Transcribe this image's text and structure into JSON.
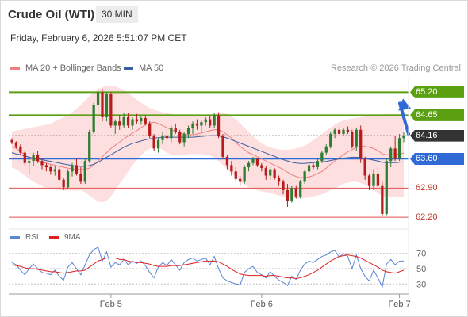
{
  "header": {
    "title": "Crude Oil (WTI)",
    "timeframe": "30 MIN",
    "datetime": "Friday, February 6, 2026 5:51:07 PM CET",
    "credit": "Research © 2026 Trading Central"
  },
  "legend": {
    "ma20": "MA 20 + Bollinger Bands",
    "ma50": "MA 50",
    "ma20_color": "#f08080",
    "ma50_color": "#3a5fa0"
  },
  "rsi_legend": {
    "rsi": "RSI",
    "ma9": "9MA",
    "rsi_color": "#5b84d6",
    "ma9_color": "#e02020"
  },
  "colors": {
    "up": "#2e7d32",
    "down": "#b71c1c",
    "band": "#fddcdc",
    "resistance": "#5aa010",
    "support": "#e05050",
    "current": "#333333",
    "pivot": "#2f6ad6",
    "arrow": "#2f6ad6"
  },
  "chart_data": [
    {
      "type": "candlestick",
      "y_scale": [
        62.05,
        65.55
      ],
      "x_labels": [
        "Feb 5",
        "Feb 6",
        "Feb 7"
      ],
      "ohlc": [
        [
          64.05,
          64.1,
          63.95,
          64.0
        ],
        [
          64.0,
          64.02,
          63.85,
          63.9
        ],
        [
          63.9,
          63.95,
          63.7,
          63.75
        ],
        [
          63.75,
          63.8,
          63.45,
          63.5
        ],
        [
          63.5,
          63.62,
          63.25,
          63.55
        ],
        [
          63.55,
          63.75,
          63.42,
          63.7
        ],
        [
          63.7,
          63.8,
          63.5,
          63.55
        ],
        [
          63.55,
          63.6,
          63.35,
          63.45
        ],
        [
          63.45,
          63.5,
          63.3,
          63.4
        ],
        [
          63.4,
          63.45,
          63.22,
          63.3
        ],
        [
          63.3,
          63.42,
          63.2,
          63.35
        ],
        [
          63.35,
          63.4,
          63.05,
          63.1
        ],
        [
          63.1,
          63.15,
          62.85,
          62.92
        ],
        [
          62.92,
          63.35,
          62.88,
          63.3
        ],
        [
          63.3,
          63.5,
          63.18,
          63.45
        ],
        [
          63.45,
          63.6,
          63.2,
          63.25
        ],
        [
          63.25,
          63.4,
          63.0,
          63.05
        ],
        [
          63.05,
          63.6,
          63.0,
          63.55
        ],
        [
          63.55,
          64.3,
          63.5,
          64.25
        ],
        [
          64.25,
          64.95,
          64.2,
          64.9
        ],
        [
          64.9,
          65.3,
          64.6,
          65.2
        ],
        [
          65.2,
          65.28,
          64.5,
          64.6
        ],
        [
          64.6,
          65.2,
          64.5,
          65.15
        ],
        [
          65.15,
          65.2,
          64.35,
          64.4
        ],
        [
          64.4,
          64.55,
          64.2,
          64.5
        ],
        [
          64.5,
          64.65,
          64.3,
          64.4
        ],
        [
          64.4,
          64.7,
          64.35,
          64.6
        ],
        [
          64.6,
          64.7,
          64.35,
          64.4
        ],
        [
          64.4,
          64.6,
          64.3,
          64.55
        ],
        [
          64.55,
          64.68,
          64.45,
          64.5
        ],
        [
          64.5,
          64.62,
          64.42,
          64.58
        ],
        [
          64.58,
          64.65,
          64.4,
          64.45
        ],
        [
          64.45,
          64.5,
          64.1,
          64.15
        ],
        [
          64.15,
          64.2,
          63.8,
          63.85
        ],
        [
          63.85,
          64.1,
          63.75,
          64.05
        ],
        [
          64.05,
          64.25,
          63.95,
          64.15
        ],
        [
          64.15,
          64.3,
          64.05,
          64.1
        ],
        [
          64.1,
          64.4,
          64.0,
          64.35
        ],
        [
          64.35,
          64.45,
          64.2,
          64.25
        ],
        [
          64.25,
          64.3,
          63.95,
          64.0
        ],
        [
          64.0,
          64.25,
          63.9,
          64.2
        ],
        [
          64.2,
          64.4,
          64.1,
          64.35
        ],
        [
          64.35,
          64.5,
          64.2,
          64.45
        ],
        [
          64.45,
          64.55,
          64.3,
          64.4
        ],
        [
          64.4,
          64.52,
          64.25,
          64.48
        ],
        [
          64.48,
          64.6,
          64.4,
          64.55
        ],
        [
          64.55,
          64.62,
          64.35,
          64.4
        ],
        [
          64.4,
          64.7,
          64.35,
          64.65
        ],
        [
          64.65,
          64.72,
          64.1,
          64.15
        ],
        [
          64.15,
          64.2,
          63.6,
          63.65
        ],
        [
          63.65,
          63.7,
          63.35,
          63.45
        ],
        [
          63.45,
          63.55,
          63.2,
          63.3
        ],
        [
          63.3,
          63.4,
          63.05,
          63.12
        ],
        [
          63.12,
          63.2,
          62.95,
          63.05
        ],
        [
          63.05,
          63.45,
          63.0,
          63.4
        ],
        [
          63.4,
          63.55,
          63.3,
          63.5
        ],
        [
          63.5,
          63.65,
          63.45,
          63.6
        ],
        [
          63.6,
          63.62,
          63.4,
          63.45
        ],
        [
          63.45,
          63.5,
          63.3,
          63.38
        ],
        [
          63.38,
          63.42,
          63.1,
          63.2
        ],
        [
          63.2,
          63.4,
          63.1,
          63.35
        ],
        [
          63.35,
          63.38,
          63.1,
          63.15
        ],
        [
          63.15,
          63.2,
          62.95,
          63.05
        ],
        [
          63.05,
          63.1,
          62.75,
          62.85
        ],
        [
          62.85,
          63.0,
          62.45,
          62.6
        ],
        [
          62.6,
          62.95,
          62.55,
          62.9
        ],
        [
          62.9,
          62.95,
          62.65,
          62.7
        ],
        [
          62.7,
          63.1,
          62.65,
          63.05
        ],
        [
          63.05,
          63.35,
          63.0,
          63.3
        ],
        [
          63.3,
          63.5,
          63.25,
          63.45
        ],
        [
          63.45,
          63.5,
          63.35,
          63.4
        ],
        [
          63.4,
          63.6,
          63.35,
          63.55
        ],
        [
          63.55,
          63.78,
          63.5,
          63.75
        ],
        [
          63.75,
          63.95,
          63.7,
          63.9
        ],
        [
          63.9,
          64.25,
          63.85,
          64.2
        ],
        [
          64.2,
          64.35,
          64.1,
          64.3
        ],
        [
          64.3,
          64.4,
          64.15,
          64.2
        ],
        [
          64.2,
          64.35,
          64.15,
          64.3
        ],
        [
          64.3,
          64.38,
          64.2,
          64.25
        ],
        [
          64.25,
          64.3,
          63.85,
          63.9
        ],
        [
          63.9,
          64.35,
          63.8,
          64.3
        ],
        [
          64.3,
          64.4,
          63.5,
          63.6
        ],
        [
          63.6,
          63.65,
          63.1,
          63.2
        ],
        [
          63.2,
          63.25,
          62.85,
          62.95
        ],
        [
          62.95,
          63.35,
          62.85,
          63.25
        ],
        [
          63.25,
          63.4,
          62.9,
          62.95
        ],
        [
          62.95,
          63.05,
          62.22,
          62.28
        ],
        [
          62.28,
          63.6,
          62.25,
          63.55
        ],
        [
          63.55,
          63.9,
          63.4,
          63.85
        ],
        [
          63.85,
          64.15,
          63.55,
          63.6
        ],
        [
          63.6,
          64.2,
          63.55,
          64.1
        ],
        [
          64.1,
          64.25,
          64.0,
          64.16
        ]
      ],
      "ma20": [
        63.9,
        63.85,
        63.78,
        63.7,
        63.62,
        63.58,
        63.55,
        63.52,
        63.5,
        63.47,
        63.45,
        63.42,
        63.4,
        63.38,
        63.36,
        63.35,
        63.34,
        63.35,
        63.38,
        63.45,
        63.55,
        63.65,
        63.75,
        63.85,
        63.93,
        64.0,
        64.08,
        64.15,
        64.22,
        64.28,
        64.35,
        64.42,
        64.46,
        64.48,
        64.45,
        64.4,
        64.35,
        64.3,
        64.26,
        64.22,
        64.2,
        64.18,
        64.18,
        64.2,
        64.22,
        64.25,
        64.28,
        64.3,
        64.3,
        64.25,
        64.18,
        64.1,
        64.0,
        63.9,
        63.82,
        63.75,
        63.7,
        63.65,
        63.6,
        63.55,
        63.5,
        63.45,
        63.4,
        63.35,
        63.28,
        63.22,
        63.18,
        63.15,
        63.15,
        63.17,
        63.2,
        63.25,
        63.3,
        63.38,
        63.47,
        63.55,
        63.62,
        63.7,
        63.77,
        63.82,
        63.88,
        63.9,
        63.9,
        63.88,
        63.85,
        63.8,
        63.72,
        63.7,
        63.7,
        63.7,
        63.72,
        63.74
      ],
      "bb_upper": [
        64.25,
        64.28,
        64.3,
        64.32,
        64.34,
        64.36,
        64.38,
        64.4,
        64.42,
        64.45,
        64.5,
        64.55,
        64.6,
        64.65,
        64.72,
        64.8,
        64.9,
        65.0,
        65.1,
        65.2,
        65.28,
        65.32,
        65.34,
        65.35,
        65.34,
        65.3,
        65.25,
        65.18,
        65.1,
        65.02,
        64.95,
        64.88,
        64.82,
        64.78,
        64.75,
        64.72,
        64.7,
        64.68,
        64.66,
        64.65,
        64.64,
        64.63,
        64.62,
        64.62,
        64.63,
        64.64,
        64.65,
        64.68,
        64.7,
        64.7,
        64.68,
        64.62,
        64.55,
        64.45,
        64.35,
        64.25,
        64.15,
        64.05,
        63.98,
        63.92,
        63.88,
        63.85,
        63.83,
        63.82,
        63.82,
        63.83,
        63.85,
        63.88,
        63.92,
        63.98,
        64.05,
        64.12,
        64.2,
        64.28,
        64.35,
        64.42,
        64.48,
        64.52,
        64.55,
        64.57,
        64.58,
        64.6,
        64.62,
        64.64,
        64.65,
        64.66,
        64.67,
        64.68,
        64.68,
        64.68,
        64.68,
        64.68
      ],
      "bb_lower": [
        63.4,
        63.35,
        63.28,
        63.2,
        63.12,
        63.05,
        63.0,
        62.95,
        62.9,
        62.88,
        62.86,
        62.85,
        62.84,
        62.84,
        62.84,
        62.84,
        62.85,
        62.8,
        62.72,
        62.65,
        62.58,
        62.56,
        62.6,
        62.7,
        62.85,
        63.0,
        63.15,
        63.3,
        63.45,
        63.58,
        63.68,
        63.78,
        63.85,
        63.9,
        63.88,
        63.82,
        63.75,
        63.7,
        63.68,
        63.68,
        63.7,
        63.72,
        63.72,
        63.72,
        63.72,
        63.7,
        63.68,
        63.62,
        63.55,
        63.45,
        63.35,
        63.25,
        63.15,
        63.05,
        62.98,
        62.92,
        62.88,
        62.85,
        62.82,
        62.8,
        62.78,
        62.75,
        62.72,
        62.7,
        62.68,
        62.66,
        62.65,
        62.65,
        62.66,
        62.68,
        62.7,
        62.72,
        62.75,
        62.8,
        62.85,
        62.9,
        62.95,
        63.0,
        63.03,
        63.05,
        63.05,
        63.02,
        62.98,
        62.92,
        62.85,
        62.78,
        62.7,
        62.68,
        62.68,
        62.68,
        62.68,
        62.68
      ],
      "ma50": [
        63.75,
        63.72,
        63.7,
        63.67,
        63.64,
        63.62,
        63.6,
        63.58,
        63.56,
        63.54,
        63.52,
        63.5,
        63.48,
        63.46,
        63.44,
        63.43,
        63.42,
        63.42,
        63.44,
        63.47,
        63.52,
        63.58,
        63.64,
        63.7,
        63.76,
        63.82,
        63.88,
        63.93,
        63.97,
        64.0,
        64.03,
        64.06,
        64.08,
        64.1,
        64.11,
        64.12,
        64.12,
        64.12,
        64.12,
        64.12,
        64.12,
        64.12,
        64.12,
        64.13,
        64.14,
        64.15,
        64.16,
        64.16,
        64.15,
        64.13,
        64.1,
        64.06,
        64.02,
        63.98,
        63.94,
        63.9,
        63.86,
        63.82,
        63.78,
        63.74,
        63.7,
        63.66,
        63.62,
        63.58,
        63.55,
        63.52,
        63.5,
        63.49,
        63.49,
        63.5,
        63.51,
        63.52,
        63.53,
        63.54,
        63.56,
        63.58,
        63.6,
        63.62,
        63.63,
        63.64,
        63.64,
        63.63,
        63.61,
        63.59,
        63.57,
        63.55,
        63.52,
        63.51,
        63.51,
        63.51,
        63.52,
        63.53
      ],
      "levels": [
        {
          "value": 65.2,
          "label": "65.20",
          "kind": "resistance"
        },
        {
          "value": 64.65,
          "label": "64.65",
          "kind": "resistance"
        },
        {
          "value": 64.16,
          "label": "64.16",
          "kind": "current"
        },
        {
          "value": 63.6,
          "label": "63.60",
          "kind": "pivot"
        },
        {
          "value": 62.9,
          "label": "62.90",
          "kind": "support"
        },
        {
          "value": 62.2,
          "label": "62.20",
          "kind": "support"
        }
      ],
      "arrow": {
        "from": 64.16,
        "to": 65.2
      }
    },
    {
      "type": "line",
      "y_scale": [
        22,
        78
      ],
      "y_ticks": [
        "70",
        "50",
        "30"
      ],
      "y_tick_values": [
        70,
        50,
        30
      ],
      "rsi": [
        58,
        55,
        48,
        42,
        50,
        56,
        50,
        45,
        44,
        42,
        48,
        40,
        35,
        52,
        58,
        50,
        42,
        55,
        68,
        75,
        78,
        60,
        72,
        52,
        58,
        55,
        62,
        55,
        60,
        57,
        60,
        54,
        45,
        38,
        52,
        58,
        54,
        62,
        55,
        48,
        58,
        62,
        64,
        60,
        62,
        64,
        55,
        66,
        50,
        38,
        34,
        32,
        30,
        29,
        45,
        50,
        53,
        45,
        42,
        38,
        46,
        40,
        35,
        32,
        28,
        40,
        36,
        48,
        56,
        60,
        58,
        62,
        66,
        68,
        72,
        74,
        65,
        70,
        66,
        50,
        68,
        50,
        40,
        34,
        48,
        38,
        26,
        56,
        62,
        55,
        60,
        60
      ],
      "ma9": [
        55,
        54,
        53,
        51,
        50,
        50,
        49,
        48,
        47,
        46,
        46,
        45,
        44,
        45,
        46,
        47,
        47,
        48,
        52,
        56,
        60,
        62,
        64,
        64,
        64,
        62,
        62,
        60,
        59,
        58,
        58,
        57,
        56,
        54,
        53,
        53,
        53,
        54,
        54,
        54,
        55,
        56,
        57,
        58,
        59,
        60,
        60,
        60,
        59,
        56,
        53,
        49,
        46,
        43,
        42,
        41,
        41,
        41,
        41,
        40,
        41,
        41,
        40,
        39,
        38,
        38,
        37,
        38,
        40,
        42,
        45,
        48,
        52,
        56,
        60,
        63,
        66,
        67,
        68,
        67,
        66,
        64,
        61,
        58,
        55,
        52,
        48,
        46,
        45,
        44,
        46,
        48
      ]
    }
  ]
}
